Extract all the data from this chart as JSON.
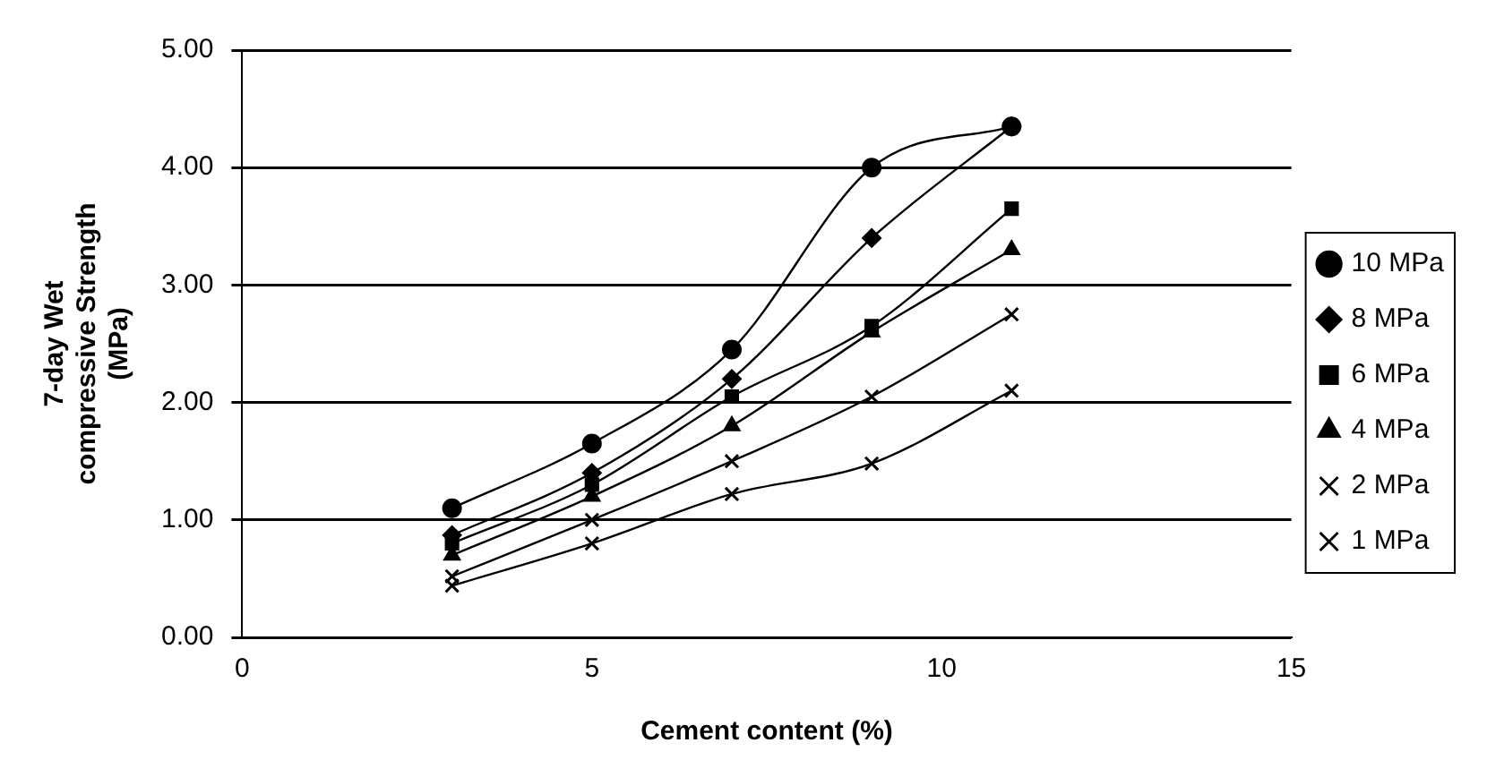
{
  "chart_data": {
    "type": "line",
    "xlabel": "Cement content (%)",
    "ylabel": "7-day Wet\ncompressive Strength\n(MPa)",
    "xlim": [
      0,
      15
    ],
    "xticks": [
      0,
      5,
      10,
      15
    ],
    "ylim": [
      0,
      5
    ],
    "yticks": [
      {
        "value": 0,
        "label": "0.00"
      },
      {
        "value": 1,
        "label": "1.00"
      },
      {
        "value": 2,
        "label": "2.00"
      },
      {
        "value": 3,
        "label": "3.00"
      },
      {
        "value": 4,
        "label": "4.00"
      },
      {
        "value": 5,
        "label": "5.00"
      }
    ],
    "grid": "y",
    "legend": "right",
    "x": [
      3,
      5,
      7,
      9,
      11
    ],
    "series": [
      {
        "name": "10 MPa",
        "color": "#000000",
        "marker": "circle",
        "values": [
          1.1,
          1.65,
          2.45,
          4.0,
          4.35
        ]
      },
      {
        "name": "8 MPa",
        "color": "#000000",
        "marker": "diamond",
        "values": [
          0.87,
          1.4,
          2.2,
          3.4,
          4.35
        ]
      },
      {
        "name": "6 MPa",
        "color": "#000000",
        "marker": "square",
        "values": [
          0.8,
          1.3,
          2.05,
          2.65,
          3.65
        ]
      },
      {
        "name": "4 MPa",
        "color": "#000000",
        "marker": "triangle",
        "values": [
          0.7,
          1.2,
          1.8,
          2.6,
          3.3
        ]
      },
      {
        "name": "2 MPa",
        "color": "#000000",
        "marker": "cross",
        "values": [
          0.52,
          1.0,
          1.5,
          2.05,
          2.75
        ]
      },
      {
        "name": "1 MPa",
        "color": "#000000",
        "marker": "cross",
        "values": [
          0.44,
          0.8,
          1.22,
          1.48,
          2.1
        ]
      }
    ]
  }
}
